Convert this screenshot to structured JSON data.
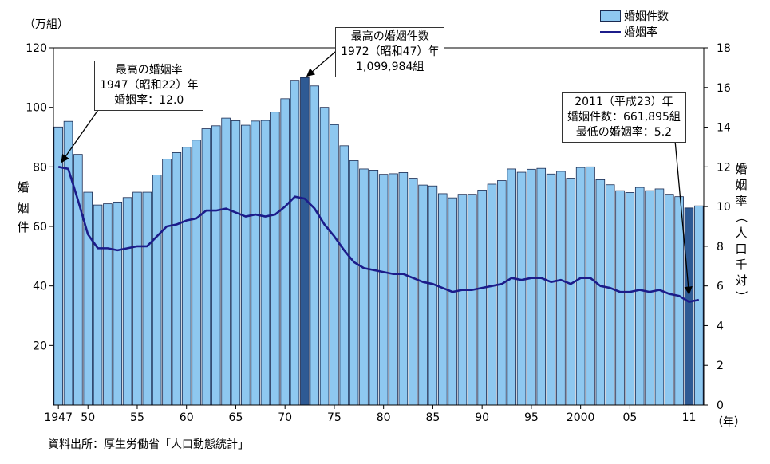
{
  "source": "資料出所：厚生労働省「人口動態統計」",
  "legend": {
    "bars": "婚姻件数",
    "line": "婚姻率"
  },
  "annotations": {
    "peak_rate": [
      "最高の婚姻率",
      "1947（昭和22）年",
      "婚姻率：12.0"
    ],
    "peak_count": [
      "最高の婚姻件数",
      "1972（昭和47）年",
      "1,099,984組"
    ],
    "lowest": [
      "2011（平成23）年",
      "婚姻件数：661,895組",
      "最低の婚姻率：5.2"
    ]
  },
  "chart_data": {
    "type": "bar",
    "years": [
      1947,
      1948,
      1949,
      1950,
      1951,
      1952,
      1953,
      1954,
      1955,
      1956,
      1957,
      1958,
      1959,
      1960,
      1961,
      1962,
      1963,
      1964,
      1965,
      1966,
      1967,
      1968,
      1969,
      1970,
      1971,
      1972,
      1973,
      1974,
      1975,
      1976,
      1977,
      1978,
      1979,
      1980,
      1981,
      1982,
      1983,
      1984,
      1985,
      1986,
      1987,
      1988,
      1989,
      1990,
      1991,
      1992,
      1993,
      1994,
      1995,
      1996,
      1997,
      1998,
      1999,
      2000,
      2001,
      2002,
      2003,
      2004,
      2005,
      2006,
      2007,
      2008,
      2009,
      2010,
      2011,
      2012
    ],
    "x_tick_labels": [
      "1947",
      "50",
      "55",
      "60",
      "65",
      "70",
      "75",
      "80",
      "85",
      "90",
      "95",
      "2000",
      "05",
      "11",
      "（年）"
    ],
    "x_tick_years": [
      1947,
      1950,
      1955,
      1960,
      1965,
      1970,
      1975,
      1980,
      1985,
      1990,
      1995,
      2000,
      2005,
      2011
    ],
    "series": [
      {
        "name": "婚姻件数",
        "axis": "left",
        "values": [
          93.4,
          95.3,
          84.2,
          71.5,
          67.2,
          67.6,
          68.2,
          69.7,
          71.5,
          71.5,
          77.3,
          82.6,
          84.8,
          86.6,
          89.0,
          92.8,
          93.8,
          96.4,
          95.5,
          94.0,
          95.4,
          95.6,
          98.4,
          102.9,
          109.1,
          110.0,
          107.2,
          100.0,
          94.2,
          87.1,
          82.1,
          79.3,
          78.9,
          77.5,
          77.7,
          78.1,
          76.2,
          73.9,
          73.6,
          71.0,
          69.6,
          70.8,
          70.8,
          72.2,
          74.2,
          75.4,
          79.3,
          78.2,
          79.2,
          79.5,
          77.6,
          78.5,
          76.2,
          79.8,
          80.0,
          75.7,
          74.0,
          72.0,
          71.4,
          73.1,
          72.0,
          72.6,
          70.8,
          70.0,
          66.2,
          66.9
        ],
        "highlight_years": [
          1972,
          2011
        ]
      },
      {
        "name": "婚姻率",
        "axis": "right",
        "values": [
          12.0,
          11.9,
          10.3,
          8.6,
          7.9,
          7.9,
          7.8,
          7.9,
          8.0,
          8.0,
          8.5,
          9.0,
          9.1,
          9.3,
          9.4,
          9.8,
          9.8,
          9.9,
          9.7,
          9.5,
          9.6,
          9.5,
          9.6,
          10.0,
          10.5,
          10.4,
          9.9,
          9.1,
          8.5,
          7.8,
          7.2,
          6.9,
          6.8,
          6.7,
          6.6,
          6.6,
          6.4,
          6.2,
          6.1,
          5.9,
          5.7,
          5.8,
          5.8,
          5.9,
          6.0,
          6.1,
          6.4,
          6.3,
          6.4,
          6.4,
          6.2,
          6.3,
          6.1,
          6.4,
          6.4,
          6.0,
          5.9,
          5.7,
          5.7,
          5.8,
          5.7,
          5.8,
          5.6,
          5.5,
          5.2,
          5.3
        ]
      }
    ],
    "y_left": {
      "unit": "（万組）",
      "label": "婚姻件",
      "ticks": [
        "20",
        "40",
        "60",
        "80",
        "100",
        "120"
      ],
      "range": [
        0,
        120
      ]
    },
    "y_right": {
      "label": "婚姻率（人口千対）",
      "ticks": [
        "0",
        "2",
        "4",
        "6",
        "8",
        "10",
        "12",
        "14",
        "16",
        "18"
      ],
      "range": [
        0,
        18
      ]
    },
    "colors": {
      "bar": "#8ec8f0",
      "bar_highlight": "#2e5a94",
      "bar_stroke": "#1a2a50",
      "line": "#1c1c8a"
    }
  }
}
